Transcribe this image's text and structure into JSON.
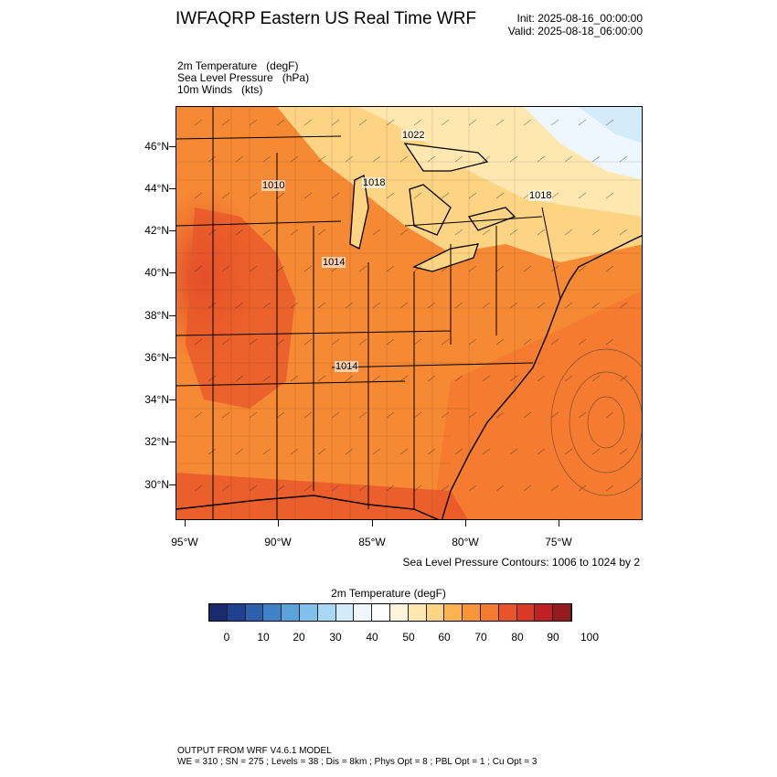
{
  "header": {
    "title": "IWFAQRP Eastern US Real Time WRF",
    "init": "Init: 2025-08-16_00:00:00",
    "valid": "Valid: 2025-08-18_06:00:00"
  },
  "fields": [
    "2m Temperature   (degF)",
    "Sea Level Pressure   (hPa)",
    "10m Winds   (kts)"
  ],
  "map": {
    "lat_labels": [
      "46°N",
      "44°N",
      "42°N",
      "40°N",
      "38°N",
      "36°N",
      "34°N",
      "32°N",
      "30°N"
    ],
    "lon_labels": [
      "95°W",
      "90°W",
      "85°W",
      "80°W",
      "75°W"
    ],
    "pressure_labels": [
      "1022",
      "1010",
      "1018",
      "1014",
      "1014",
      "1018"
    ],
    "contour_note": "Sea Level Pressure Contours: 1006 to 1024 by 2"
  },
  "colorbar": {
    "title": "2m Temperature  (degF)",
    "ticks": [
      "0",
      "10",
      "20",
      "30",
      "40",
      "50",
      "60",
      "70",
      "80",
      "90",
      "100"
    ],
    "colors": [
      "#1a2a6c",
      "#1f3f8f",
      "#2d5fae",
      "#3f82c8",
      "#5aa3dc",
      "#7fc0ec",
      "#a9d8f4",
      "#d4ecfa",
      "#eef7fd",
      "#ffffff",
      "#fff5dc",
      "#fee8b0",
      "#fdd384",
      "#fbb350",
      "#f89538",
      "#f47a2f",
      "#e8552a",
      "#d93a28",
      "#bf2026",
      "#951b1e"
    ]
  },
  "footer": {
    "line1": "OUTPUT FROM WRF V4.6.1 MODEL",
    "line2": "WE = 310 ; SN = 275 ; Levels = 38 ; Dis = 8km ; Phys Opt = 8 ; PBL Opt = 1 ; Cu Opt = 3"
  }
}
